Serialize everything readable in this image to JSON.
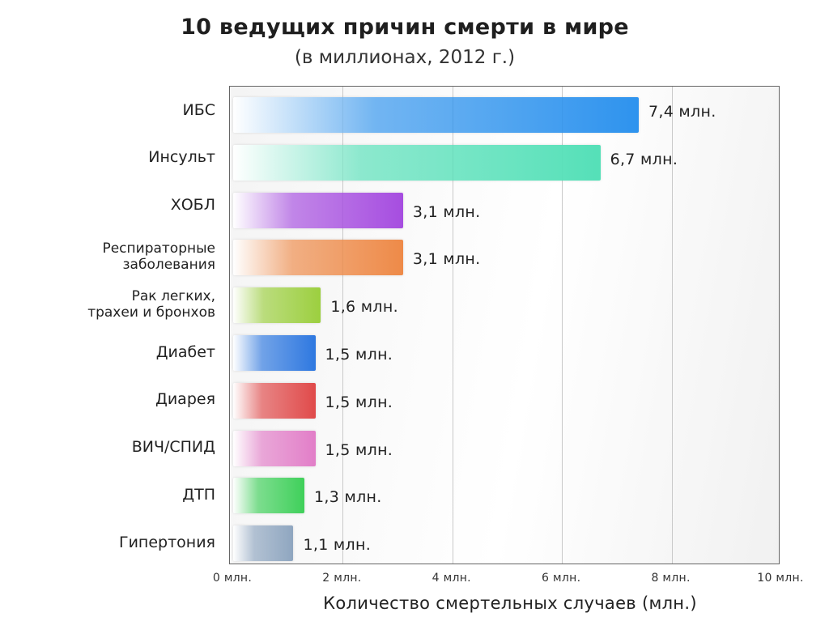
{
  "chart_data": {
    "type": "bar",
    "orientation": "horizontal",
    "title": "10 ведущих причин смерти в мире",
    "subtitle": "(в миллионах, 2012 г.)",
    "xlabel": "Количество смертельных случаев (млн.)",
    "xlim": [
      0,
      10
    ],
    "xticks": [
      "0 млн.",
      "2 млн.",
      "4 млн.",
      "6 млн.",
      "8 млн.",
      "10 млн."
    ],
    "grid": true,
    "categories": [
      "ИБС",
      "Инсульт",
      "ХОБЛ",
      "Респираторные\nзаболевания",
      "Рак легких,\nтрахеи и бронхов",
      "Диабет",
      "Диарея",
      "ВИЧ/СПИД",
      "ДТП",
      "Гипертония"
    ],
    "values": [
      7.4,
      6.7,
      3.1,
      3.1,
      1.6,
      1.5,
      1.5,
      1.5,
      1.3,
      1.1
    ],
    "value_labels": [
      "7,4 млн.",
      "6,7 млн.",
      "3,1 млн.",
      "3,1 млн.",
      "1,6 млн.",
      "1,5 млн.",
      "1,5 млн.",
      "1,5 млн.",
      "1,3 млн.",
      "1,1 млн."
    ],
    "colors": [
      "#2e93ee",
      "#55e0b8",
      "#a64de0",
      "#ee8a48",
      "#9ccf3f",
      "#2e78e0",
      "#e04a4a",
      "#e27ec8",
      "#3fd05a",
      "#8fa6c0"
    ]
  }
}
